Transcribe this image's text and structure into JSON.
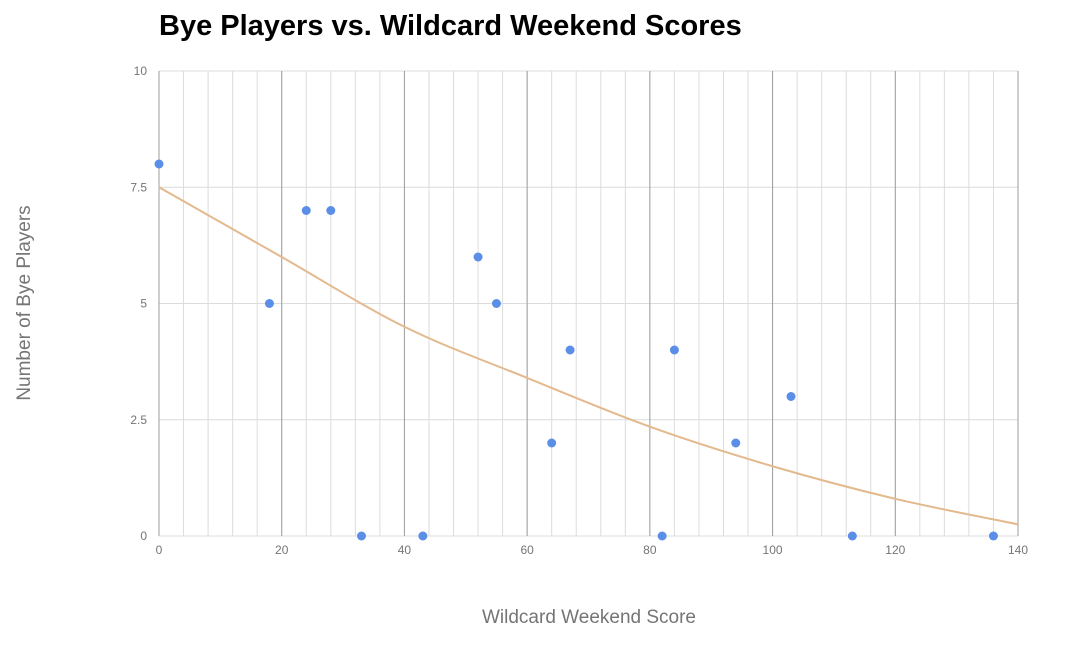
{
  "chart_data": {
    "type": "scatter",
    "title": "Bye Players vs. Wildcard Weekend Scores",
    "xlabel": "Wildcard Weekend Score",
    "ylabel": "Number of Bye Players",
    "xlim": [
      0,
      140
    ],
    "ylim": [
      0,
      10
    ],
    "x_ticks": [
      0,
      20,
      40,
      60,
      80,
      100,
      120,
      140
    ],
    "x_tick_labels": [
      "0",
      "20",
      "40",
      "60",
      "80",
      "100",
      "120",
      "140"
    ],
    "y_ticks": [
      0,
      2.5,
      5,
      7.5,
      10
    ],
    "y_tick_labels": [
      "0",
      "2.5",
      "5",
      "7.5",
      "10"
    ],
    "x_minor_step": 4,
    "y_minor_step": 2.5,
    "grid": true,
    "legend": "none",
    "series": [
      {
        "points": [
          {
            "x": 0,
            "y": 8
          },
          {
            "x": 18,
            "y": 5
          },
          {
            "x": 24,
            "y": 7
          },
          {
            "x": 28,
            "y": 7
          },
          {
            "x": 33,
            "y": 0
          },
          {
            "x": 43,
            "y": 0
          },
          {
            "x": 52,
            "y": 6
          },
          {
            "x": 55,
            "y": 5
          },
          {
            "x": 64,
            "y": 2
          },
          {
            "x": 67,
            "y": 4
          },
          {
            "x": 82,
            "y": 0
          },
          {
            "x": 84,
            "y": 4
          },
          {
            "x": 94,
            "y": 2
          },
          {
            "x": 103,
            "y": 3
          },
          {
            "x": 113,
            "y": 0
          },
          {
            "x": 136,
            "y": 0
          }
        ]
      }
    ],
    "trendline": {
      "points": [
        {
          "x": 0,
          "y": 7.5
        },
        {
          "x": 20,
          "y": 6.0
        },
        {
          "x": 40,
          "y": 4.5
        },
        {
          "x": 60,
          "y": 3.4
        },
        {
          "x": 80,
          "y": 2.35
        },
        {
          "x": 100,
          "y": 1.5
        },
        {
          "x": 120,
          "y": 0.8
        },
        {
          "x": 140,
          "y": 0.25
        }
      ]
    },
    "colors": {
      "points": "#5b8ee6",
      "trendline": "#e3b98e",
      "major_grid": "#9e9e9e",
      "minor_grid": "#dcdcdc",
      "tick_text": "#757575"
    }
  }
}
